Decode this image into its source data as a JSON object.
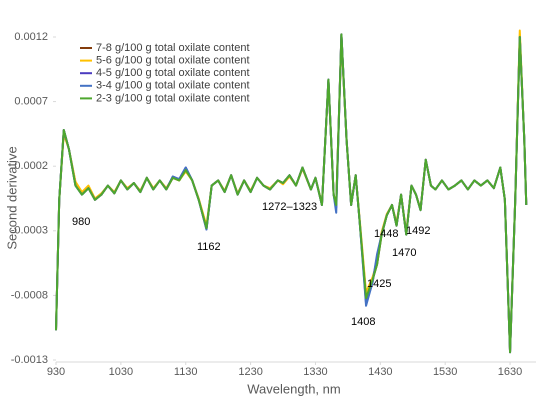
{
  "chart_data": {
    "type": "line",
    "xlabel": "Wavelength, nm",
    "ylabel": "Second derivative",
    "x": [
      930,
      935,
      942,
      950,
      960,
      970,
      980,
      990,
      1000,
      1010,
      1020,
      1030,
      1040,
      1050,
      1060,
      1070,
      1080,
      1090,
      1100,
      1110,
      1120,
      1130,
      1140,
      1150,
      1162,
      1170,
      1180,
      1190,
      1200,
      1210,
      1220,
      1230,
      1240,
      1250,
      1260,
      1272,
      1280,
      1290,
      1300,
      1310,
      1323,
      1330,
      1340,
      1350,
      1358,
      1362,
      1370,
      1378,
      1385,
      1392,
      1398,
      1408,
      1418,
      1425,
      1432,
      1440,
      1448,
      1455,
      1462,
      1470,
      1478,
      1485,
      1492,
      1500,
      1508,
      1515,
      1525,
      1535,
      1545,
      1555,
      1565,
      1575,
      1585,
      1595,
      1605,
      1615,
      1622,
      1630,
      1638,
      1645,
      1652,
      1655
    ],
    "series": [
      {
        "name": "7-8 g/100 g total oxilate content",
        "color": "#843c0c",
        "values": [
          -0.00107,
          -6e-05,
          0.00048,
          0.00033,
          7e-05,
          -1e-05,
          4e-05,
          -6e-05,
          -2e-05,
          5e-05,
          -1e-05,
          9e-05,
          2e-05,
          7e-05,
          0,
          0.00011,
          2e-05,
          9e-05,
          2e-05,
          0.00011,
          9e-05,
          0.00018,
          9e-05,
          -6e-05,
          -0.00028,
          5e-05,
          9e-05,
          0,
          0.00013,
          -2e-05,
          9e-05,
          0,
          0.00011,
          5e-05,
          2e-05,
          9e-05,
          7e-05,
          0.00013,
          5e-05,
          0.00019,
          2e-05,
          0.00011,
          -0.0001,
          0.00087,
          -2e-05,
          -0.0001,
          0.00122,
          0.0004,
          -0.0001,
          0.00013,
          -0.00022,
          -0.0008,
          -0.00068,
          -0.00056,
          -0.00033,
          -0.00018,
          -0.0001,
          -0.00026,
          -2e-05,
          -0.00033,
          5e-05,
          -2e-05,
          -0.00014,
          0.00025,
          5e-05,
          2e-05,
          9e-05,
          2e-05,
          5e-05,
          9e-05,
          2e-05,
          9e-05,
          5e-05,
          9e-05,
          3e-05,
          0.00019,
          -6e-05,
          -0.00124,
          -6e-05,
          0.0012,
          0.0004,
          -0.0001
        ]
      },
      {
        "name": "5-6 g/100 g total oxilate content",
        "color": "#ffc000",
        "values": [
          -0.00107,
          -6e-05,
          0.00045,
          0.00033,
          8e-05,
          0,
          5e-05,
          -5e-05,
          -1e-05,
          5e-05,
          0,
          9e-05,
          3e-05,
          7e-05,
          1e-05,
          0.00011,
          3e-05,
          9e-05,
          3e-05,
          0.00011,
          9e-05,
          0.00016,
          9e-05,
          -5e-05,
          -0.00026,
          5e-05,
          9e-05,
          1e-05,
          0.00013,
          -1e-05,
          9e-05,
          1e-05,
          0.00011,
          5e-05,
          3e-05,
          9e-05,
          6e-05,
          0.00012,
          5e-05,
          0.00018,
          2e-05,
          0.00011,
          -9e-05,
          0.00086,
          -2e-05,
          -9e-05,
          0.00118,
          0.0004,
          -9e-05,
          0.00013,
          -0.0002,
          -0.00078,
          -0.00066,
          -0.00054,
          -0.00031,
          -0.00017,
          -0.0001,
          -0.00024,
          -2e-05,
          -0.00031,
          5e-05,
          -2e-05,
          -0.00013,
          0.00025,
          5e-05,
          2e-05,
          9e-05,
          2e-05,
          5e-05,
          9e-05,
          2e-05,
          9e-05,
          5e-05,
          9e-05,
          3e-05,
          0.00019,
          -6e-05,
          -0.00123,
          -6e-05,
          0.00125,
          0.0004,
          -0.0001
        ]
      },
      {
        "name": "4-5 g/100 g total oxilate content",
        "color": "#4b3bbf",
        "values": [
          -0.00107,
          -6e-05,
          0.00048,
          0.00033,
          5e-05,
          -2e-05,
          3e-05,
          -6e-05,
          -2e-05,
          5e-05,
          -1e-05,
          9e-05,
          2e-05,
          7e-05,
          0,
          0.00011,
          2e-05,
          9e-05,
          2e-05,
          0.00012,
          0.0001,
          0.00019,
          9e-05,
          -6e-05,
          -0.00029,
          5e-05,
          9e-05,
          0,
          0.00013,
          -2e-05,
          9e-05,
          0,
          0.00011,
          5e-05,
          2e-05,
          9e-05,
          7e-05,
          0.00013,
          5e-05,
          0.00019,
          2e-05,
          0.00011,
          -0.0001,
          0.00087,
          -2e-05,
          -0.00012,
          0.00122,
          0.0004,
          -0.0001,
          0.00013,
          -0.00022,
          -0.00086,
          -0.0007,
          -0.0005,
          -0.00033,
          -0.00018,
          -0.0001,
          -0.00026,
          -2e-05,
          -0.00033,
          5e-05,
          -2e-05,
          -0.00014,
          0.00025,
          5e-05,
          2e-05,
          9e-05,
          2e-05,
          5e-05,
          9e-05,
          2e-05,
          9e-05,
          5e-05,
          9e-05,
          3e-05,
          0.00019,
          -6e-05,
          -0.00124,
          -6e-05,
          0.0012,
          0.0004,
          -0.0001
        ]
      },
      {
        "name": "3-4 g/100 g total oxilate content",
        "color": "#4472c4",
        "values": [
          -0.00107,
          -6e-05,
          0.00048,
          0.00033,
          5e-05,
          -2e-05,
          3e-05,
          -6e-05,
          -2e-05,
          5e-05,
          -1e-05,
          9e-05,
          2e-05,
          7e-05,
          0,
          0.00011,
          2e-05,
          9e-05,
          2e-05,
          0.00012,
          0.0001,
          0.00019,
          9e-05,
          -6e-05,
          -0.00029,
          5e-05,
          9e-05,
          0,
          0.00013,
          -2e-05,
          9e-05,
          0,
          0.00011,
          5e-05,
          2e-05,
          9e-05,
          7e-05,
          0.00013,
          5e-05,
          0.00019,
          2e-05,
          0.00011,
          -0.0001,
          0.00087,
          -2e-05,
          -0.00016,
          0.00122,
          0.0004,
          -0.0001,
          0.00013,
          -0.00022,
          -0.00088,
          -0.0007,
          -0.00048,
          -0.00033,
          -0.00018,
          -0.0001,
          -0.00026,
          -2e-05,
          -0.00033,
          5e-05,
          -2e-05,
          -0.00014,
          0.00025,
          5e-05,
          2e-05,
          9e-05,
          2e-05,
          5e-05,
          9e-05,
          2e-05,
          9e-05,
          5e-05,
          9e-05,
          3e-05,
          0.00019,
          -6e-05,
          -0.00124,
          -6e-05,
          0.0012,
          0.0004,
          -0.0001
        ]
      },
      {
        "name": "2-3 g/100 g total oxilate content",
        "color": "#4ea72e",
        "values": [
          -0.00107,
          -6e-05,
          0.00048,
          0.00033,
          5e-05,
          -2e-05,
          3e-05,
          -6e-05,
          -2e-05,
          5e-05,
          -1e-05,
          9e-05,
          2e-05,
          7e-05,
          0,
          0.00011,
          2e-05,
          9e-05,
          2e-05,
          0.00011,
          9e-05,
          0.00017,
          9e-05,
          -6e-05,
          -0.00028,
          5e-05,
          9e-05,
          0,
          0.00013,
          -2e-05,
          9e-05,
          0,
          0.00011,
          5e-05,
          2e-05,
          9e-05,
          7e-05,
          0.00013,
          5e-05,
          0.00019,
          2e-05,
          0.00011,
          -0.0001,
          0.00087,
          -2e-05,
          -0.0001,
          0.00122,
          0.0004,
          -0.0001,
          0.00013,
          -0.00022,
          -0.00082,
          -0.00068,
          -0.00056,
          -0.00033,
          -0.00018,
          -0.0001,
          -0.00026,
          -2e-05,
          -0.00033,
          5e-05,
          -2e-05,
          -0.00014,
          0.00025,
          5e-05,
          2e-05,
          9e-05,
          2e-05,
          5e-05,
          9e-05,
          2e-05,
          9e-05,
          5e-05,
          9e-05,
          3e-05,
          0.00019,
          -6e-05,
          -0.00124,
          -6e-05,
          0.0012,
          0.0004,
          -0.0001
        ]
      }
    ],
    "annotations": [
      "980",
      "1162",
      "1272–1323",
      "1408",
      "1425",
      "1448",
      "1470",
      "1492"
    ],
    "xlim": [
      930,
      1670
    ],
    "xticks": [
      930,
      1030,
      1130,
      1230,
      1330,
      1430,
      1530,
      1630
    ],
    "ylim": [
      -0.0013,
      0.0012
    ],
    "yticks": [
      0.0012,
      0.0007,
      0.0002,
      -0.0003,
      -0.0008,
      -0.0013
    ],
    "grid": false,
    "legend": "upper left"
  }
}
